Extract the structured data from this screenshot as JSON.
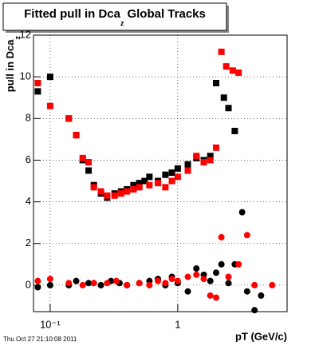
{
  "chart_data": {
    "type": "scatter",
    "title": "Fitted pull in Dca",
    "title_subscript": "z",
    "title_suffix": "Global Tracks",
    "y_label": "pull in Dca",
    "y_label_subscript": "z",
    "x_label": "pT (GeV/c)",
    "footer": "Thu Oct 27 21:10:08 2011",
    "log_x": true,
    "grid": true,
    "xlim": [
      0.074,
      7.2
    ],
    "xticks": [
      {
        "value": 0.1,
        "label": "10⁻¹"
      },
      1
    ],
    "ylim": [
      -1.27,
      12
    ],
    "yticks": [
      0,
      2,
      4,
      6,
      8,
      10,
      12
    ],
    "series": [
      {
        "color": "#000000",
        "marker": "square",
        "x": [
          0.08,
          0.1,
          0.14,
          0.16,
          0.18,
          0.2,
          0.22,
          0.25,
          0.28,
          0.32,
          0.36,
          0.4,
          0.45,
          0.5,
          0.55,
          0.6,
          0.7,
          0.8,
          0.9,
          1.0,
          1.2,
          1.4,
          1.6,
          1.8,
          2.0,
          2.3,
          2.5,
          2.8
        ],
        "values": [
          9.3,
          10.0,
          8.0,
          7.2,
          6.0,
          5.5,
          4.8,
          4.4,
          4.2,
          4.4,
          4.5,
          4.6,
          4.8,
          4.9,
          5.0,
          5.2,
          5.0,
          5.3,
          5.4,
          5.6,
          5.8,
          6.1,
          6.0,
          6.2,
          9.7,
          9.0,
          8.5,
          7.4
        ]
      },
      {
        "color": "#ff0000",
        "marker": "square",
        "x": [
          0.08,
          0.1,
          0.14,
          0.16,
          0.18,
          0.2,
          0.22,
          0.25,
          0.28,
          0.32,
          0.36,
          0.4,
          0.45,
          0.5,
          0.6,
          0.7,
          0.8,
          0.9,
          1.0,
          1.2,
          1.4,
          1.6,
          1.8,
          2.0,
          2.2,
          2.4,
          2.7,
          3.0
        ],
        "values": [
          9.7,
          8.6,
          8.0,
          7.2,
          6.1,
          5.9,
          4.7,
          4.5,
          4.3,
          4.3,
          4.4,
          4.5,
          4.6,
          4.7,
          4.8,
          4.9,
          4.7,
          5.0,
          5.2,
          5.5,
          6.2,
          5.9,
          6.0,
          6.6,
          11.2,
          10.5,
          10.3,
          10.2
        ]
      },
      {
        "color": "#000000",
        "marker": "circle",
        "x": [
          0.08,
          0.1,
          0.14,
          0.16,
          0.2,
          0.25,
          0.3,
          0.35,
          0.4,
          0.5,
          0.6,
          0.7,
          0.8,
          0.9,
          1.0,
          1.2,
          1.4,
          1.6,
          1.8,
          2.0,
          2.2,
          2.5,
          2.8,
          3.2,
          3.5,
          4.0,
          4.5
        ],
        "values": [
          -0.1,
          0.0,
          0.0,
          0.2,
          0.1,
          0.0,
          0.2,
          0.1,
          0.0,
          0.1,
          0.2,
          0.3,
          0.0,
          0.4,
          0.1,
          -0.3,
          0.8,
          0.5,
          0.2,
          0.6,
          1.0,
          0.1,
          1.0,
          3.5,
          -0.3,
          -1.2,
          -0.5
        ]
      },
      {
        "color": "#ff0000",
        "marker": "circle",
        "x": [
          0.08,
          0.1,
          0.14,
          0.18,
          0.22,
          0.28,
          0.33,
          0.4,
          0.5,
          0.6,
          0.7,
          0.8,
          0.9,
          1.0,
          1.2,
          1.4,
          1.6,
          1.8,
          2.0,
          2.2,
          2.5,
          3.0,
          3.5,
          4.0,
          5.5
        ],
        "values": [
          0.2,
          0.3,
          0.1,
          0.0,
          0.1,
          0.1,
          0.2,
          0.0,
          0.1,
          0.0,
          0.2,
          0.1,
          0.3,
          0.2,
          0.4,
          0.5,
          0.3,
          -0.5,
          -0.6,
          2.3,
          0.4,
          1.0,
          2.4,
          0.0,
          0.0
        ]
      }
    ]
  }
}
